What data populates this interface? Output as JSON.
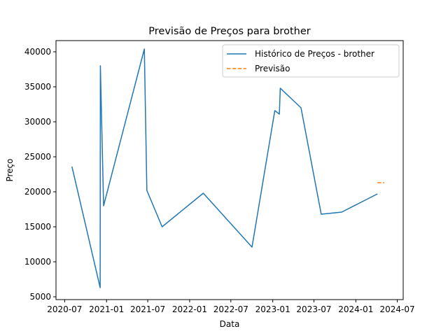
{
  "chart_data": {
    "type": "line",
    "title": "Previsão de Preços para brother",
    "xlabel": "Data",
    "ylabel": "Preço",
    "x_ticks": [
      "2020-07",
      "2021-01",
      "2021-07",
      "2022-01",
      "2022-07",
      "2023-01",
      "2023-07",
      "2024-01",
      "2024-07"
    ],
    "y_ticks": [
      5000,
      10000,
      15000,
      20000,
      25000,
      30000,
      35000,
      40000
    ],
    "xlim": [
      "2020-05-24",
      "2024-07-27"
    ],
    "ylim": [
      4600,
      41600
    ],
    "grid": false,
    "legend_position": "top-right",
    "series": [
      {
        "name": "Histórico de Preços - brother",
        "color": "#1f77b4",
        "style": "solid",
        "points": [
          {
            "x": "2020-08-02",
            "y": 23600
          },
          {
            "x": "2020-12-04",
            "y": 6300
          },
          {
            "x": "2020-12-05",
            "y": 38000
          },
          {
            "x": "2020-12-19",
            "y": 18000
          },
          {
            "x": "2021-06-16",
            "y": 40400
          },
          {
            "x": "2021-06-27",
            "y": 20200
          },
          {
            "x": "2021-09-02",
            "y": 15000
          },
          {
            "x": "2022-03-02",
            "y": 19800
          },
          {
            "x": "2022-10-02",
            "y": 12100
          },
          {
            "x": "2023-01-10",
            "y": 31600
          },
          {
            "x": "2023-01-30",
            "y": 31100
          },
          {
            "x": "2023-02-03",
            "y": 34800
          },
          {
            "x": "2023-05-05",
            "y": 32000
          },
          {
            "x": "2023-08-02",
            "y": 16800
          },
          {
            "x": "2023-10-31",
            "y": 17100
          },
          {
            "x": "2024-04-05",
            "y": 19700
          }
        ]
      },
      {
        "name": "Previsão",
        "color": "#ff7f0e",
        "style": "dashed",
        "points": [
          {
            "x": "2024-04-05",
            "y": 21300
          },
          {
            "x": "2024-05-05",
            "y": 21300
          }
        ]
      }
    ]
  }
}
